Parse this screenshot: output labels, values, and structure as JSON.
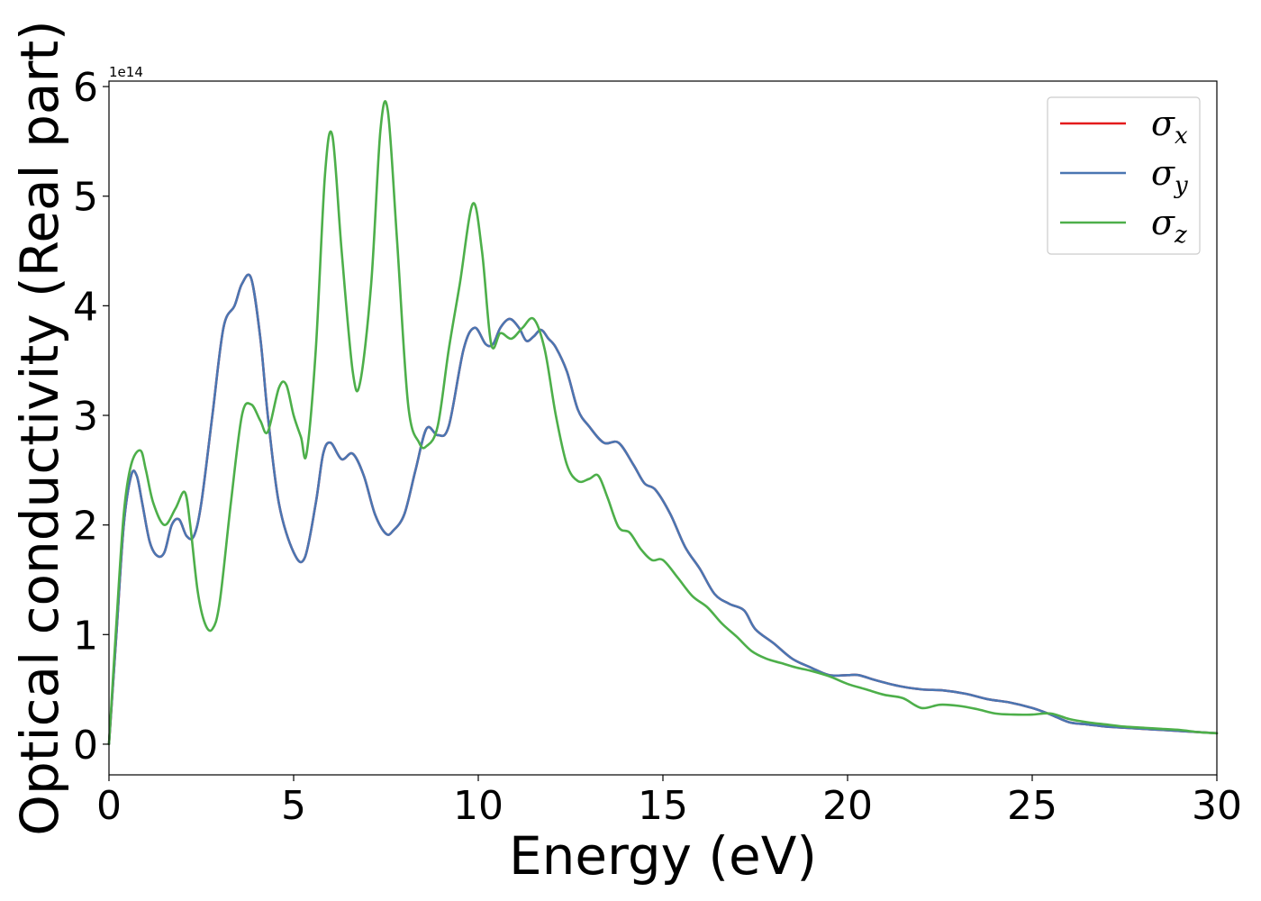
{
  "chart_data": {
    "type": "line",
    "xlabel": "Energy (eV)",
    "ylabel": "Optical conductivity (Real part)",
    "y_offset_label": "1e14",
    "xlim": [
      0,
      30
    ],
    "ylim": [
      -0.28,
      6.05
    ],
    "y_scale_multiplier": 100000000000000.0,
    "x_ticks": [
      0,
      5,
      10,
      15,
      20,
      25,
      30
    ],
    "x_tick_labels": [
      "0",
      "5",
      "10",
      "15",
      "20",
      "25",
      "30"
    ],
    "y_ticks": [
      0,
      1,
      2,
      3,
      4,
      5,
      6
    ],
    "y_tick_labels": [
      "0",
      "1",
      "2",
      "3",
      "4",
      "5",
      "6"
    ],
    "grid": false,
    "legend_position": "top-right",
    "series": [
      {
        "name": "σx",
        "base": "σ",
        "sub": "x",
        "color": "#e41a1c",
        "x": [
          0,
          0.2,
          0.4,
          0.6,
          0.75,
          0.9,
          1.1,
          1.3,
          1.5,
          1.7,
          1.9,
          2.1,
          2.3,
          2.5,
          2.8,
          3.1,
          3.4,
          3.6,
          3.85,
          4.1,
          4.3,
          4.6,
          5.0,
          5.3,
          5.6,
          5.8,
          6.0,
          6.3,
          6.6,
          6.9,
          7.2,
          7.5,
          7.7,
          8.0,
          8.3,
          8.6,
          8.9,
          9.2,
          9.6,
          9.9,
          10.2,
          10.4,
          10.6,
          10.85,
          11.1,
          11.3,
          11.5,
          11.7,
          11.9,
          12.1,
          12.4,
          12.7,
          13.0,
          13.4,
          13.8,
          14.2,
          14.5,
          14.8,
          15.2,
          15.6,
          16.0,
          16.4,
          16.8,
          17.2,
          17.5,
          18.0,
          18.5,
          19.0,
          19.5,
          20.0,
          20.3,
          20.8,
          21.4,
          22.0,
          22.6,
          23.2,
          23.8,
          24.4,
          25.0,
          25.5,
          26.0,
          26.5,
          27.0,
          27.5,
          28.0,
          28.5,
          29.0,
          29.5,
          30.0
        ],
        "y": [
          0.0,
          1.0,
          2.0,
          2.45,
          2.45,
          2.2,
          1.85,
          1.72,
          1.75,
          2.0,
          2.05,
          1.9,
          1.9,
          2.2,
          3.0,
          3.8,
          4.0,
          4.2,
          4.25,
          3.7,
          3.0,
          2.2,
          1.75,
          1.7,
          2.2,
          2.65,
          2.75,
          2.6,
          2.65,
          2.45,
          2.1,
          1.92,
          1.95,
          2.1,
          2.5,
          2.88,
          2.82,
          2.9,
          3.6,
          3.8,
          3.65,
          3.65,
          3.8,
          3.88,
          3.8,
          3.68,
          3.72,
          3.78,
          3.7,
          3.62,
          3.4,
          3.05,
          2.9,
          2.75,
          2.75,
          2.55,
          2.38,
          2.32,
          2.1,
          1.8,
          1.6,
          1.37,
          1.28,
          1.22,
          1.05,
          0.92,
          0.78,
          0.7,
          0.63,
          0.63,
          0.63,
          0.58,
          0.53,
          0.5,
          0.49,
          0.46,
          0.41,
          0.38,
          0.33,
          0.27,
          0.2,
          0.18,
          0.16,
          0.15,
          0.14,
          0.13,
          0.12,
          0.11,
          0.1
        ]
      },
      {
        "name": "σy",
        "base": "σ",
        "sub": "y",
        "color": "#4a76b2",
        "x": [
          0,
          0.2,
          0.4,
          0.6,
          0.75,
          0.9,
          1.1,
          1.3,
          1.5,
          1.7,
          1.9,
          2.1,
          2.3,
          2.5,
          2.8,
          3.1,
          3.4,
          3.6,
          3.85,
          4.1,
          4.3,
          4.6,
          5.0,
          5.3,
          5.6,
          5.8,
          6.0,
          6.3,
          6.6,
          6.9,
          7.2,
          7.5,
          7.7,
          8.0,
          8.3,
          8.6,
          8.9,
          9.2,
          9.6,
          9.9,
          10.2,
          10.4,
          10.6,
          10.85,
          11.1,
          11.3,
          11.5,
          11.7,
          11.9,
          12.1,
          12.4,
          12.7,
          13.0,
          13.4,
          13.8,
          14.2,
          14.5,
          14.8,
          15.2,
          15.6,
          16.0,
          16.4,
          16.8,
          17.2,
          17.5,
          18.0,
          18.5,
          19.0,
          19.5,
          20.0,
          20.3,
          20.8,
          21.4,
          22.0,
          22.6,
          23.2,
          23.8,
          24.4,
          25.0,
          25.5,
          26.0,
          26.5,
          27.0,
          27.5,
          28.0,
          28.5,
          29.0,
          29.5,
          30.0
        ],
        "y": [
          0.0,
          1.0,
          2.0,
          2.45,
          2.45,
          2.2,
          1.85,
          1.72,
          1.75,
          2.0,
          2.05,
          1.9,
          1.9,
          2.2,
          3.0,
          3.8,
          4.0,
          4.2,
          4.25,
          3.7,
          3.0,
          2.2,
          1.75,
          1.7,
          2.2,
          2.65,
          2.75,
          2.6,
          2.65,
          2.45,
          2.1,
          1.92,
          1.95,
          2.1,
          2.5,
          2.88,
          2.82,
          2.9,
          3.6,
          3.8,
          3.65,
          3.65,
          3.8,
          3.88,
          3.8,
          3.68,
          3.72,
          3.78,
          3.7,
          3.62,
          3.4,
          3.05,
          2.9,
          2.75,
          2.75,
          2.55,
          2.38,
          2.32,
          2.1,
          1.8,
          1.6,
          1.37,
          1.28,
          1.22,
          1.05,
          0.92,
          0.78,
          0.7,
          0.63,
          0.63,
          0.63,
          0.58,
          0.53,
          0.5,
          0.49,
          0.46,
          0.41,
          0.38,
          0.33,
          0.27,
          0.2,
          0.18,
          0.16,
          0.15,
          0.14,
          0.13,
          0.12,
          0.11,
          0.1
        ]
      },
      {
        "name": "σz",
        "base": "σ",
        "sub": "z",
        "color": "#4daf4a",
        "x": [
          0,
          0.2,
          0.4,
          0.6,
          0.85,
          1.0,
          1.2,
          1.5,
          1.8,
          2.05,
          2.2,
          2.4,
          2.6,
          2.8,
          3.0,
          3.3,
          3.6,
          3.85,
          4.1,
          4.3,
          4.6,
          4.8,
          5.0,
          5.2,
          5.35,
          5.6,
          5.85,
          6.05,
          6.3,
          6.6,
          6.8,
          7.1,
          7.35,
          7.55,
          7.8,
          8.1,
          8.4,
          8.6,
          8.9,
          9.2,
          9.5,
          9.85,
          10.1,
          10.35,
          10.6,
          10.9,
          11.2,
          11.5,
          11.8,
          12.1,
          12.4,
          12.7,
          13.0,
          13.25,
          13.5,
          13.8,
          14.1,
          14.4,
          14.7,
          15.0,
          15.4,
          15.8,
          16.2,
          16.6,
          17.0,
          17.4,
          17.8,
          18.2,
          18.6,
          19.0,
          19.5,
          20.0,
          20.5,
          21.0,
          21.5,
          22.0,
          22.5,
          23.0,
          23.5,
          24.0,
          24.5,
          25.0,
          25.5,
          26.0,
          26.5,
          27.0,
          27.5,
          28.0,
          28.5,
          29.0,
          29.5,
          30.0
        ],
        "y": [
          0.0,
          1.1,
          2.1,
          2.55,
          2.68,
          2.5,
          2.2,
          2.0,
          2.15,
          2.3,
          2.0,
          1.4,
          1.1,
          1.05,
          1.3,
          2.2,
          3.0,
          3.1,
          2.95,
          2.85,
          3.25,
          3.28,
          3.0,
          2.8,
          2.65,
          3.6,
          5.2,
          5.55,
          4.5,
          3.4,
          3.3,
          4.2,
          5.6,
          5.78,
          4.6,
          3.1,
          2.75,
          2.72,
          2.9,
          3.6,
          4.2,
          4.93,
          4.5,
          3.65,
          3.75,
          3.7,
          3.8,
          3.88,
          3.6,
          3.0,
          2.55,
          2.4,
          2.42,
          2.45,
          2.25,
          1.98,
          1.93,
          1.78,
          1.68,
          1.68,
          1.52,
          1.35,
          1.25,
          1.1,
          0.98,
          0.85,
          0.78,
          0.74,
          0.7,
          0.67,
          0.62,
          0.55,
          0.5,
          0.45,
          0.42,
          0.33,
          0.36,
          0.35,
          0.32,
          0.28,
          0.27,
          0.27,
          0.28,
          0.23,
          0.2,
          0.18,
          0.16,
          0.15,
          0.14,
          0.13,
          0.11,
          0.1
        ]
      }
    ]
  }
}
